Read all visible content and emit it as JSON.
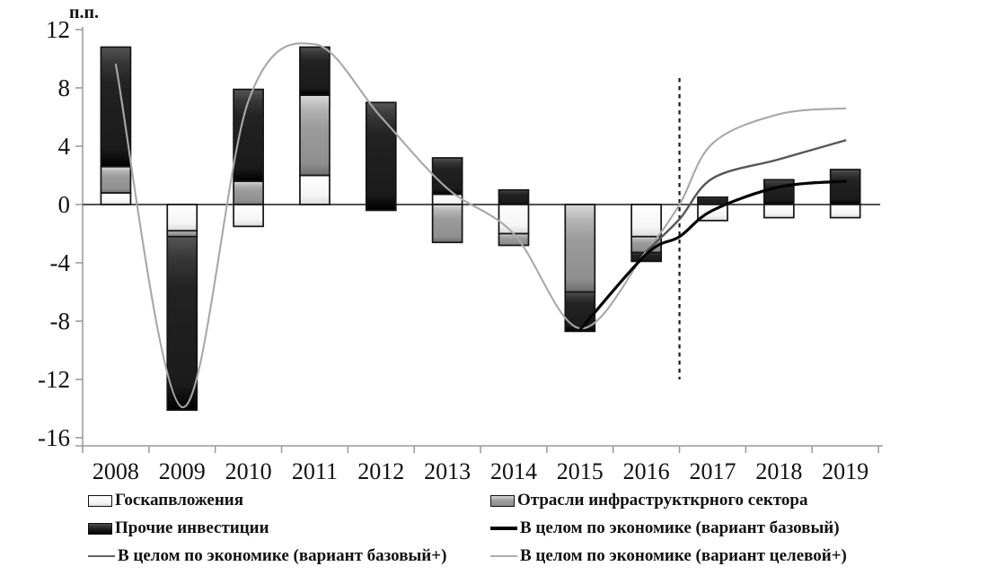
{
  "chart_data": {
    "type": "bar",
    "subtype": "stacked-bars-with-lines",
    "unit_label": "п.п.",
    "y_axis": {
      "min": -16,
      "max": 12,
      "step": 4,
      "ticks": [
        12,
        8,
        4,
        0,
        -4,
        -8,
        -12,
        -16
      ]
    },
    "years": [
      2008,
      2009,
      2010,
      2011,
      2012,
      2013,
      2014,
      2015,
      2016,
      2017,
      2018,
      2019
    ],
    "bar_series_names": {
      "gos": "Госкапвложения",
      "infra": "Отрасли инфраструкткрного сектора",
      "other": "Прочие инвестиции"
    },
    "bars": [
      {
        "year": 2008,
        "segments": [
          [
            "gos",
            0,
            0.8
          ],
          [
            "infra",
            0.8,
            2.6
          ],
          [
            "other",
            2.6,
            10.8
          ]
        ]
      },
      {
        "year": 2009,
        "segments": [
          [
            "gos",
            0,
            -1.8
          ],
          [
            "infra",
            -1.8,
            -2.2
          ],
          [
            "other",
            -2.2,
            -14.1
          ]
        ]
      },
      {
        "year": 2010,
        "segments": [
          [
            "gos",
            0,
            -1.5
          ],
          [
            "infra",
            0,
            1.6
          ],
          [
            "other",
            1.6,
            7.9
          ]
        ]
      },
      {
        "year": 2011,
        "segments": [
          [
            "gos",
            0,
            2.0
          ],
          [
            "infra",
            2.0,
            7.5
          ],
          [
            "other",
            7.5,
            10.8
          ]
        ]
      },
      {
        "year": 2012,
        "segments": [
          [
            "other",
            -0.4,
            7.0
          ]
        ]
      },
      {
        "year": 2013,
        "segments": [
          [
            "gos",
            0,
            0.7
          ],
          [
            "other",
            0.7,
            3.2
          ],
          [
            "infra",
            0,
            -2.6
          ]
        ]
      },
      {
        "year": 2014,
        "segments": [
          [
            "other",
            0,
            1.0
          ],
          [
            "gos",
            0,
            -2.0
          ],
          [
            "infra",
            -2.0,
            -2.8
          ]
        ]
      },
      {
        "year": 2015,
        "segments": [
          [
            "infra",
            0,
            -6.0
          ],
          [
            "other",
            -6.0,
            -8.7
          ]
        ]
      },
      {
        "year": 2016,
        "segments": [
          [
            "gos",
            0,
            -2.2
          ],
          [
            "infra",
            -2.2,
            -3.3
          ],
          [
            "other",
            -3.3,
            -3.9
          ]
        ]
      },
      {
        "year": 2017,
        "segments": [
          [
            "other",
            0,
            0.5
          ],
          [
            "gos",
            0,
            -1.1
          ]
        ]
      },
      {
        "year": 2018,
        "segments": [
          [
            "other",
            0,
            1.7
          ],
          [
            "gos",
            0,
            -0.9
          ]
        ]
      },
      {
        "year": 2019,
        "segments": [
          [
            "other",
            0,
            2.4
          ],
          [
            "gos",
            0,
            -0.9
          ]
        ]
      }
    ],
    "lines": [
      {
        "id": "target-plus",
        "name": "В целом по экономике (вариант целевой+)",
        "style": "light",
        "points": [
          [
            2008,
            9.6
          ],
          [
            2009,
            -13.9
          ],
          [
            2010,
            7.1
          ],
          [
            2011,
            11.0
          ],
          [
            2012,
            6.0
          ],
          [
            2013,
            1.1
          ],
          [
            2014,
            -2.0
          ],
          [
            2015,
            -8.5
          ],
          [
            2016,
            -3.2
          ],
          [
            2016.5,
            0.0
          ],
          [
            2017,
            4.2
          ],
          [
            2018,
            6.2
          ],
          [
            2019,
            6.6
          ]
        ]
      },
      {
        "id": "base-plus",
        "name": "В целом по экономике (вариант базовый+)",
        "style": "medium",
        "points": [
          [
            2016,
            -3.2
          ],
          [
            2016.5,
            -1.0
          ],
          [
            2017,
            1.8
          ],
          [
            2018,
            3.1
          ],
          [
            2019,
            4.4
          ]
        ]
      },
      {
        "id": "base",
        "name": "В целом по экономике (вариант базовый)",
        "style": "black",
        "points": [
          [
            2015,
            -8.6
          ],
          [
            2016,
            -3.4
          ],
          [
            2016.5,
            -2.2
          ],
          [
            2017,
            -0.4
          ],
          [
            2018,
            1.2
          ],
          [
            2019,
            1.6
          ]
        ]
      }
    ],
    "forecast_divider_x": 2016.5,
    "grid": false,
    "legend_position": "bottom"
  },
  "legend": {
    "col1": [
      {
        "marker": "box-white",
        "label": "Госкапвложения"
      },
      {
        "marker": "box-dark",
        "label": "Прочие инвестиции"
      },
      {
        "marker": "line-medium",
        "label": "В целом по экономике (вариант базовый+)"
      }
    ],
    "col2": [
      {
        "marker": "box-gray",
        "label": "Отрасли инфраструкткрного сектора"
      },
      {
        "marker": "line-black",
        "label": "В целом по экономике (вариант базовый)"
      },
      {
        "marker": "line-light",
        "label": "В целом по экономике (вариант целевой+)"
      }
    ]
  },
  "colors": {
    "bar_dark": "#1f1f1f",
    "bar_gray": "#9a9a9a",
    "bar_white": "#fbfbfb",
    "line_black": "#050505",
    "line_medium": "#565656",
    "line_light": "#a8a8a8",
    "zero_line": "#3a3a3a",
    "axis": "#999999"
  }
}
